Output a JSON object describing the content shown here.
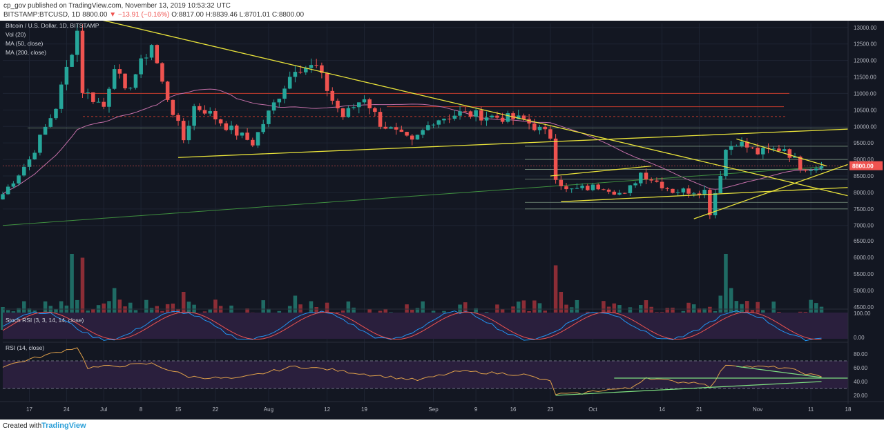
{
  "header": {
    "publisher_line": "cp_gov published on TradingView.com, November 13, 2019 10:53:32 UTC",
    "symbol": "BITSTAMP:BTCUSD, 1D",
    "price": "8800.00",
    "change": "▼ −13.91 (−0.16%)",
    "ohlc": "O:8817.00 H:8839.46 L:8701.01 C:8800.00"
  },
  "legend": {
    "title": "Bitcoin / U.S. Dollar, 1D, BITSTAMP",
    "vol": "Vol (20)",
    "ma50": "MA (50, close)",
    "ma200": "MA (200, close)"
  },
  "footer": {
    "created_with": "Created with",
    "brand": "TradingView"
  },
  "colors": {
    "background": "#131722",
    "up": "#26a69a",
    "down": "#ef5350",
    "vol_up": "#1f6b64",
    "vol_down": "#8b2d36",
    "ma50": "#c46fa8",
    "ma200": "#3f8f3f",
    "trendline": "#e8e23a",
    "level": "#a7c9a7",
    "resistance": "#c0392b",
    "price_tag": "#ef5350"
  },
  "chart_data": [
    {
      "type": "candlestick",
      "title": "Bitcoin / U.S. Dollar, 1D, BITSTAMP",
      "y_axis": {
        "ticks": [
          13000,
          12500,
          12000,
          11500,
          11000,
          10500,
          10000,
          9500,
          9000,
          8500,
          8000,
          7500,
          7000
        ],
        "tick_labels": [
          "13000.00",
          "12500.00",
          "12000.00",
          "11500.00",
          "11000.00",
          "10500.00",
          "10000.00",
          "9500.00",
          "9000.00",
          "8500.00",
          "8000.00",
          "7500.00",
          "7000.00"
        ],
        "range": [
          6200,
          13100
        ]
      },
      "x_axis": {
        "range": [
          "2019-06-12",
          "2019-11-18"
        ],
        "tick_dates": [
          "2019-06-17",
          "2019-06-24",
          "2019-07-01",
          "2019-07-08",
          "2019-07-15",
          "2019-07-22",
          "2019-08-01",
          "2019-08-12",
          "2019-08-19",
          "2019-09-01",
          "2019-09-09",
          "2019-09-16",
          "2019-09-23",
          "2019-10-01",
          "2019-10-14",
          "2019-10-21",
          "2019-11-01",
          "2019-11-11",
          "2019-11-18"
        ],
        "tick_labels": [
          "17",
          "24",
          "Jul",
          "8",
          "15",
          "22",
          "Aug",
          "12",
          "19",
          "Sep",
          "9",
          "16",
          "23",
          "Oct",
          "14",
          "21",
          "Nov",
          "11",
          "18"
        ]
      },
      "anchors": [
        [
          "2019-06-12",
          7950
        ],
        [
          "2019-06-17",
          9000
        ],
        [
          "2019-06-22",
          10600
        ],
        [
          "2019-06-26",
          12900
        ],
        [
          "2019-06-27",
          11100
        ],
        [
          "2019-07-01",
          10600
        ],
        [
          "2019-07-03",
          11900
        ],
        [
          "2019-07-05",
          11000
        ],
        [
          "2019-07-10",
          12500
        ],
        [
          "2019-07-12",
          11300
        ],
        [
          "2019-07-16",
          9600
        ],
        [
          "2019-07-18",
          10600
        ],
        [
          "2019-07-20",
          10500
        ],
        [
          "2019-07-25",
          9900
        ],
        [
          "2019-07-29",
          9500
        ],
        [
          "2019-08-01",
          10400
        ],
        [
          "2019-08-06",
          11800
        ],
        [
          "2019-08-10",
          11800
        ],
        [
          "2019-08-13",
          10800
        ],
        [
          "2019-08-15",
          10300
        ],
        [
          "2019-08-19",
          10900
        ],
        [
          "2019-08-22",
          10100
        ],
        [
          "2019-08-28",
          9500
        ],
        [
          "2019-09-01",
          10200
        ],
        [
          "2019-09-06",
          10400
        ],
        [
          "2019-09-12",
          10300
        ],
        [
          "2019-09-18",
          10200
        ],
        [
          "2019-09-23",
          9700
        ],
        [
          "2019-09-24",
          8500
        ],
        [
          "2019-09-26",
          8050
        ],
        [
          "2019-10-03",
          8200
        ],
        [
          "2019-10-07",
          7900
        ],
        [
          "2019-10-10",
          8600
        ],
        [
          "2019-10-16",
          8050
        ],
        [
          "2019-10-22",
          8050
        ],
        [
          "2019-10-23",
          7400
        ],
        [
          "2019-10-25",
          8600
        ],
        [
          "2019-10-26",
          9300
        ],
        [
          "2019-10-28",
          9550
        ],
        [
          "2019-11-01",
          9200
        ],
        [
          "2019-11-06",
          9350
        ],
        [
          "2019-11-09",
          8800
        ],
        [
          "2019-11-11",
          8750
        ],
        [
          "2019-11-13",
          8800
        ]
      ],
      "current_price": 8800,
      "horizontal_levels": [
        9950,
        9400,
        9000,
        8700,
        8400,
        7700,
        7500
      ],
      "resistance_levels": [
        11000,
        10600
      ],
      "dotted_levels": [
        10300
      ],
      "trendlines": [
        {
          "from": [
            "2019-06-26",
            13400
          ],
          "to": [
            "2019-11-18",
            7900
          ]
        },
        {
          "from": [
            "2019-07-15",
            9060
          ],
          "to": [
            "2019-11-18",
            9920
          ]
        },
        {
          "from": [
            "2019-09-23",
            8500
          ],
          "to": [
            "2019-10-12",
            8800
          ]
        },
        {
          "from": [
            "2019-09-25",
            7720
          ],
          "to": [
            "2019-11-18",
            8150
          ]
        },
        {
          "from": [
            "2019-10-20",
            7200
          ],
          "to": [
            "2019-11-18",
            8850
          ]
        },
        {
          "from": [
            "2019-10-28",
            9620
          ],
          "to": [
            "2019-11-14",
            8800
          ]
        }
      ]
    },
    {
      "type": "bar",
      "title": "Vol (20)",
      "y_axis": {
        "tick_labels": [
          "6500.00",
          "6000.00",
          "5500.00",
          "5000.00",
          "4500.00"
        ]
      },
      "spikes": [
        [
          "2019-06-25",
          1.0
        ],
        [
          "2019-06-27",
          0.95
        ],
        [
          "2019-07-03",
          0.55
        ],
        [
          "2019-07-16",
          0.5
        ],
        [
          "2019-08-06",
          0.45
        ],
        [
          "2019-09-24",
          0.85
        ],
        [
          "2019-09-25",
          0.5
        ],
        [
          "2019-10-25",
          0.45
        ],
        [
          "2019-10-26",
          1.0
        ],
        [
          "2019-10-27",
          0.55
        ]
      ]
    },
    {
      "type": "line",
      "title": "Stoch RSI (3, 3, 14, 14, close)",
      "y_axis": {
        "tick_labels": [
          "100.00",
          "0.00"
        ],
        "range": [
          0,
          100
        ]
      },
      "band": [
        20,
        80
      ]
    },
    {
      "type": "line",
      "title": "RSI (14, close)",
      "y_axis": {
        "tick_labels": [
          "80.00",
          "60.00",
          "40.00",
          "20.00"
        ],
        "range": [
          10,
          95
        ]
      },
      "band": [
        30,
        70
      ],
      "anchors": [
        [
          "2019-06-12",
          62
        ],
        [
          "2019-06-26",
          90
        ],
        [
          "2019-06-28",
          60
        ],
        [
          "2019-07-10",
          66
        ],
        [
          "2019-07-17",
          47
        ],
        [
          "2019-07-26",
          44
        ],
        [
          "2019-08-06",
          62
        ],
        [
          "2019-08-12",
          58
        ],
        [
          "2019-08-20",
          50
        ],
        [
          "2019-08-29",
          42
        ],
        [
          "2019-09-06",
          55
        ],
        [
          "2019-09-18",
          50
        ],
        [
          "2019-09-23",
          40
        ],
        [
          "2019-09-24",
          22
        ],
        [
          "2019-09-28",
          22
        ],
        [
          "2019-10-03",
          28
        ],
        [
          "2019-10-08",
          30
        ],
        [
          "2019-10-11",
          46
        ],
        [
          "2019-10-16",
          40
        ],
        [
          "2019-10-22",
          38
        ],
        [
          "2019-10-23",
          30
        ],
        [
          "2019-10-26",
          65
        ],
        [
          "2019-10-30",
          62
        ],
        [
          "2019-11-06",
          60
        ],
        [
          "2019-11-13",
          46
        ]
      ],
      "trendlines": [
        {
          "from": [
            "2019-09-24",
            20
          ],
          "to": [
            "2019-11-13",
            40
          ]
        },
        {
          "from": [
            "2019-10-05",
            45
          ],
          "to": [
            "2019-11-18",
            45
          ]
        },
        {
          "from": [
            "2019-10-28",
            62
          ],
          "to": [
            "2019-11-13",
            46
          ]
        }
      ]
    }
  ]
}
